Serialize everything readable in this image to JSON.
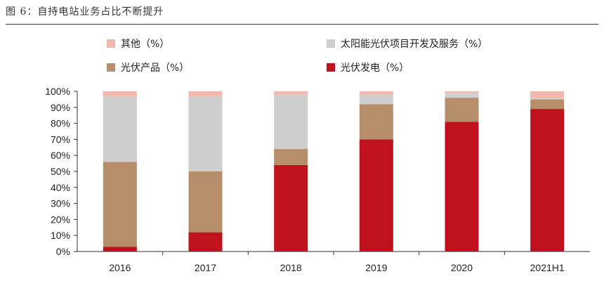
{
  "figure": {
    "title": "图 6：自持电站业务占比不断提升"
  },
  "colors": {
    "其他": "#f2b8ae",
    "太阳能光伏项目开发及服务": "#cfcfcf",
    "光伏产品": "#b68f6a",
    "光伏发电": "#c0121d",
    "axis": "#333333"
  },
  "chart_data": {
    "type": "bar",
    "stacked": true,
    "title": "",
    "xlabel": "",
    "ylabel": "",
    "categories": [
      "2016",
      "2017",
      "2018",
      "2019",
      "2020",
      "2021H1"
    ],
    "ylim": [
      0,
      100
    ],
    "yticks": [
      "0%",
      "10%",
      "20%",
      "30%",
      "40%",
      "50%",
      "60%",
      "70%",
      "80%",
      "90%",
      "100%"
    ],
    "legend_position": "top",
    "grid": false,
    "series": [
      {
        "name": "光伏发电（%）",
        "key": "光伏发电",
        "values": [
          3,
          12,
          54,
          70,
          81,
          89
        ]
      },
      {
        "name": "光伏产品（%）",
        "key": "光伏产品",
        "values": [
          53,
          38,
          10,
          22,
          15,
          6
        ]
      },
      {
        "name": "太阳能光伏项目开发及服务（%）",
        "key": "太阳能光伏项目开发及服务",
        "values": [
          41,
          47,
          34,
          6,
          3,
          1
        ]
      },
      {
        "name": "其他（%）",
        "key": "其他",
        "values": [
          3,
          3,
          2,
          2,
          1,
          4
        ]
      }
    ]
  }
}
